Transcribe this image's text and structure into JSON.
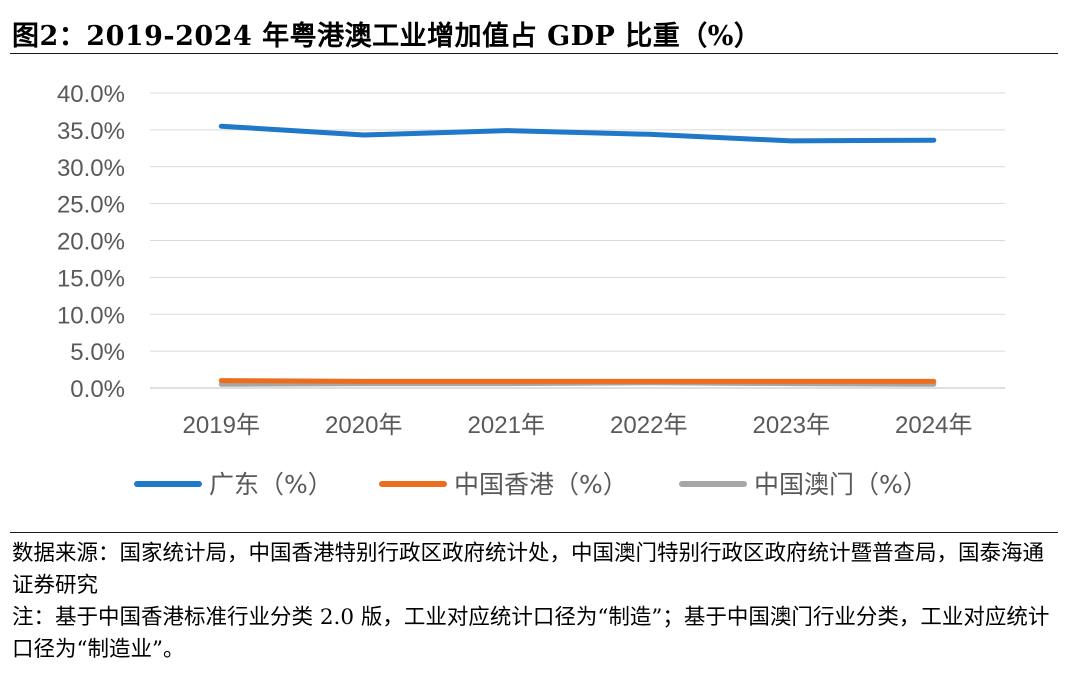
{
  "header": {
    "title": "图2：2019-2024 年粤港澳工业增加值占 GDP 比重（%）"
  },
  "chart_data": {
    "type": "line",
    "title": "2019-2024 年粤港澳工业增加值占 GDP 比重（%）",
    "xlabel": "",
    "ylabel": "",
    "categories": [
      "2019年",
      "2020年",
      "2021年",
      "2022年",
      "2023年",
      "2024年"
    ],
    "y_ticks": [
      "0.0%",
      "5.0%",
      "10.0%",
      "15.0%",
      "20.0%",
      "25.0%",
      "30.0%",
      "35.0%",
      "40.0%"
    ],
    "ylim": [
      0,
      40
    ],
    "grid": true,
    "legend_position": "bottom",
    "series": [
      {
        "name": "广东（%）",
        "color": "#1f78c8",
        "values": [
          35.5,
          34.3,
          34.9,
          34.4,
          33.5,
          33.6
        ]
      },
      {
        "name": "中国香港（%）",
        "color": "#ed6d1f",
        "values": [
          1.0,
          0.9,
          0.9,
          0.9,
          0.9,
          0.9
        ]
      },
      {
        "name": "中国澳门（%）",
        "color": "#a6a6a6",
        "values": [
          0.5,
          0.6,
          0.6,
          0.7,
          0.6,
          0.5
        ]
      }
    ]
  },
  "notes": {
    "source": "数据来源：国家统计局，中国香港特别行政区政府统计处，中国澳门特别行政区政府统计暨普查局，国泰海通证券研究",
    "footnote": "注：基于中国香港标准行业分类 2.0 版，工业对应统计口径为“制造”；基于中国澳门行业分类，工业对应统计口径为“制造业”。"
  }
}
